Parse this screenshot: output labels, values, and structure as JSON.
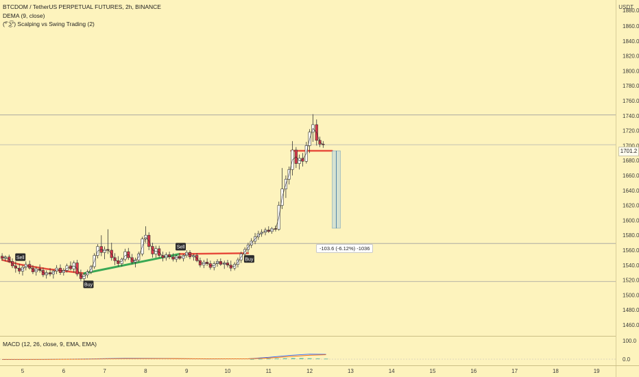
{
  "header": {
    "symbol_line": "BTCDOM / TetherUS PERPETUAL FUTURES, 2h, BINANCE",
    "indicator_1": "DEMA (9, close)",
    "indicator_2": "(͡° ͜ʖ͡°) Scalping vs Swing Trading (2)"
  },
  "currency_label": "USDT",
  "last_price_label": "1701.2",
  "measure_label": "-103.6 (-6.12%) -1036",
  "macd_label": "MACD (12, 26, close, 9, EMA, EMA)",
  "signals": [
    "Sell",
    "Buy",
    "Sell",
    "Buy"
  ],
  "colors": {
    "background": "#fdf3bd",
    "candle_up": "#ffffff",
    "candle_down": "#d9374a",
    "buy_line": "#3aa955",
    "sell_line": "#e74c3c",
    "measure_fill": "#b7d4e0"
  },
  "chart_data": [
    {
      "type": "candlestick",
      "title": "BTCDOM / TetherUS PERPETUAL FUTURES, 2h, BINANCE",
      "x_ticks": [
        "5",
        "6",
        "7",
        "8",
        "9",
        "10",
        "11",
        "12",
        "13",
        "14",
        "15",
        "16",
        "17",
        "18",
        "19"
      ],
      "y_ticks": [
        1460,
        1480,
        1500,
        1520,
        1540,
        1560,
        1580,
        1600,
        1620,
        1640,
        1660,
        1680,
        1700,
        1720,
        1740,
        1760,
        1780,
        1800,
        1820,
        1840,
        1860
      ],
      "ylim": [
        1450,
        1880
      ],
      "xlim": [
        4.45,
        19.45
      ],
      "horizontal_levels": [
        1741,
        1569,
        1518
      ],
      "last_price": 1701.2,
      "candles": [
        {
          "x": 4.5,
          "o": 1552,
          "h": 1556,
          "l": 1546,
          "c": 1549
        },
        {
          "x": 4.58,
          "o": 1549,
          "h": 1553,
          "l": 1545,
          "c": 1551
        },
        {
          "x": 4.67,
          "o": 1551,
          "h": 1554,
          "l": 1543,
          "c": 1545
        },
        {
          "x": 4.75,
          "o": 1545,
          "h": 1549,
          "l": 1536,
          "c": 1539
        },
        {
          "x": 4.83,
          "o": 1539,
          "h": 1545,
          "l": 1530,
          "c": 1536
        },
        {
          "x": 4.92,
          "o": 1536,
          "h": 1542,
          "l": 1528,
          "c": 1532
        },
        {
          "x": 5.0,
          "o": 1532,
          "h": 1540,
          "l": 1526,
          "c": 1537
        },
        {
          "x": 5.08,
          "o": 1537,
          "h": 1545,
          "l": 1533,
          "c": 1541
        },
        {
          "x": 5.17,
          "o": 1541,
          "h": 1546,
          "l": 1534,
          "c": 1536
        },
        {
          "x": 5.25,
          "o": 1536,
          "h": 1540,
          "l": 1528,
          "c": 1531
        },
        {
          "x": 5.33,
          "o": 1531,
          "h": 1538,
          "l": 1526,
          "c": 1535
        },
        {
          "x": 5.42,
          "o": 1535,
          "h": 1541,
          "l": 1530,
          "c": 1533
        },
        {
          "x": 5.5,
          "o": 1533,
          "h": 1537,
          "l": 1524,
          "c": 1527
        },
        {
          "x": 5.58,
          "o": 1527,
          "h": 1533,
          "l": 1522,
          "c": 1530
        },
        {
          "x": 5.67,
          "o": 1530,
          "h": 1536,
          "l": 1525,
          "c": 1528
        },
        {
          "x": 5.75,
          "o": 1528,
          "h": 1534,
          "l": 1522,
          "c": 1532
        },
        {
          "x": 5.83,
          "o": 1532,
          "h": 1540,
          "l": 1528,
          "c": 1536
        },
        {
          "x": 5.92,
          "o": 1536,
          "h": 1541,
          "l": 1527,
          "c": 1530
        },
        {
          "x": 6.0,
          "o": 1530,
          "h": 1536,
          "l": 1526,
          "c": 1533
        },
        {
          "x": 6.08,
          "o": 1533,
          "h": 1542,
          "l": 1530,
          "c": 1539
        },
        {
          "x": 6.17,
          "o": 1539,
          "h": 1545,
          "l": 1533,
          "c": 1535
        },
        {
          "x": 6.25,
          "o": 1535,
          "h": 1546,
          "l": 1530,
          "c": 1543
        },
        {
          "x": 6.33,
          "o": 1543,
          "h": 1547,
          "l": 1525,
          "c": 1528
        },
        {
          "x": 6.42,
          "o": 1528,
          "h": 1534,
          "l": 1519,
          "c": 1522
        },
        {
          "x": 6.5,
          "o": 1522,
          "h": 1530,
          "l": 1518,
          "c": 1527
        },
        {
          "x": 6.58,
          "o": 1527,
          "h": 1534,
          "l": 1523,
          "c": 1531
        },
        {
          "x": 6.67,
          "o": 1531,
          "h": 1540,
          "l": 1528,
          "c": 1538
        },
        {
          "x": 6.75,
          "o": 1538,
          "h": 1556,
          "l": 1535,
          "c": 1553
        },
        {
          "x": 6.83,
          "o": 1553,
          "h": 1568,
          "l": 1549,
          "c": 1565
        },
        {
          "x": 6.92,
          "o": 1565,
          "h": 1580,
          "l": 1552,
          "c": 1557
        },
        {
          "x": 7.0,
          "o": 1557,
          "h": 1565,
          "l": 1548,
          "c": 1561
        },
        {
          "x": 7.08,
          "o": 1561,
          "h": 1588,
          "l": 1555,
          "c": 1560
        },
        {
          "x": 7.17,
          "o": 1560,
          "h": 1570,
          "l": 1546,
          "c": 1550
        },
        {
          "x": 7.25,
          "o": 1550,
          "h": 1556,
          "l": 1540,
          "c": 1546
        },
        {
          "x": 7.33,
          "o": 1546,
          "h": 1552,
          "l": 1538,
          "c": 1542
        },
        {
          "x": 7.42,
          "o": 1542,
          "h": 1550,
          "l": 1538,
          "c": 1548
        },
        {
          "x": 7.5,
          "o": 1548,
          "h": 1562,
          "l": 1545,
          "c": 1558
        },
        {
          "x": 7.58,
          "o": 1558,
          "h": 1563,
          "l": 1547,
          "c": 1550
        },
        {
          "x": 7.67,
          "o": 1550,
          "h": 1555,
          "l": 1541,
          "c": 1544
        },
        {
          "x": 7.75,
          "o": 1544,
          "h": 1550,
          "l": 1537,
          "c": 1547
        },
        {
          "x": 7.83,
          "o": 1547,
          "h": 1558,
          "l": 1544,
          "c": 1555
        },
        {
          "x": 7.92,
          "o": 1555,
          "h": 1578,
          "l": 1552,
          "c": 1575
        },
        {
          "x": 8.0,
          "o": 1575,
          "h": 1592,
          "l": 1570,
          "c": 1580
        },
        {
          "x": 8.08,
          "o": 1580,
          "h": 1584,
          "l": 1560,
          "c": 1565
        },
        {
          "x": 8.17,
          "o": 1565,
          "h": 1570,
          "l": 1550,
          "c": 1555
        },
        {
          "x": 8.25,
          "o": 1555,
          "h": 1566,
          "l": 1550,
          "c": 1562
        },
        {
          "x": 8.33,
          "o": 1562,
          "h": 1566,
          "l": 1550,
          "c": 1553
        },
        {
          "x": 8.42,
          "o": 1553,
          "h": 1558,
          "l": 1545,
          "c": 1550
        },
        {
          "x": 8.5,
          "o": 1550,
          "h": 1557,
          "l": 1546,
          "c": 1554
        },
        {
          "x": 8.58,
          "o": 1554,
          "h": 1558,
          "l": 1548,
          "c": 1551
        },
        {
          "x": 8.67,
          "o": 1551,
          "h": 1556,
          "l": 1545,
          "c": 1548
        },
        {
          "x": 8.75,
          "o": 1548,
          "h": 1554,
          "l": 1544,
          "c": 1552
        },
        {
          "x": 8.83,
          "o": 1552,
          "h": 1556,
          "l": 1547,
          "c": 1549
        },
        {
          "x": 8.92,
          "o": 1549,
          "h": 1555,
          "l": 1545,
          "c": 1553
        },
        {
          "x": 9.0,
          "o": 1553,
          "h": 1560,
          "l": 1550,
          "c": 1557
        },
        {
          "x": 9.08,
          "o": 1557,
          "h": 1560,
          "l": 1548,
          "c": 1551
        },
        {
          "x": 9.17,
          "o": 1551,
          "h": 1555,
          "l": 1546,
          "c": 1553
        },
        {
          "x": 9.25,
          "o": 1553,
          "h": 1556,
          "l": 1544,
          "c": 1546
        },
        {
          "x": 9.33,
          "o": 1546,
          "h": 1550,
          "l": 1537,
          "c": 1540
        },
        {
          "x": 9.42,
          "o": 1540,
          "h": 1547,
          "l": 1536,
          "c": 1544
        },
        {
          "x": 9.5,
          "o": 1544,
          "h": 1549,
          "l": 1539,
          "c": 1542
        },
        {
          "x": 9.58,
          "o": 1542,
          "h": 1546,
          "l": 1534,
          "c": 1537
        },
        {
          "x": 9.67,
          "o": 1537,
          "h": 1545,
          "l": 1533,
          "c": 1542
        },
        {
          "x": 9.75,
          "o": 1542,
          "h": 1548,
          "l": 1538,
          "c": 1545
        },
        {
          "x": 9.83,
          "o": 1545,
          "h": 1549,
          "l": 1539,
          "c": 1541
        },
        {
          "x": 9.92,
          "o": 1541,
          "h": 1546,
          "l": 1535,
          "c": 1543
        },
        {
          "x": 10.0,
          "o": 1543,
          "h": 1547,
          "l": 1537,
          "c": 1540
        },
        {
          "x": 10.08,
          "o": 1540,
          "h": 1546,
          "l": 1532,
          "c": 1536
        },
        {
          "x": 10.17,
          "o": 1536,
          "h": 1544,
          "l": 1533,
          "c": 1541
        },
        {
          "x": 10.25,
          "o": 1541,
          "h": 1550,
          "l": 1537,
          "c": 1547
        },
        {
          "x": 10.33,
          "o": 1547,
          "h": 1558,
          "l": 1543,
          "c": 1555
        },
        {
          "x": 10.42,
          "o": 1555,
          "h": 1564,
          "l": 1551,
          "c": 1561
        },
        {
          "x": 10.5,
          "o": 1561,
          "h": 1570,
          "l": 1557,
          "c": 1567
        },
        {
          "x": 10.58,
          "o": 1567,
          "h": 1576,
          "l": 1563,
          "c": 1572
        },
        {
          "x": 10.67,
          "o": 1572,
          "h": 1583,
          "l": 1568,
          "c": 1578
        },
        {
          "x": 10.75,
          "o": 1578,
          "h": 1586,
          "l": 1574,
          "c": 1582
        },
        {
          "x": 10.83,
          "o": 1582,
          "h": 1588,
          "l": 1578,
          "c": 1584
        },
        {
          "x": 10.92,
          "o": 1584,
          "h": 1590,
          "l": 1580,
          "c": 1587
        },
        {
          "x": 11.0,
          "o": 1587,
          "h": 1592,
          "l": 1583,
          "c": 1585
        },
        {
          "x": 11.08,
          "o": 1585,
          "h": 1591,
          "l": 1582,
          "c": 1589
        },
        {
          "x": 11.17,
          "o": 1589,
          "h": 1593,
          "l": 1585,
          "c": 1588
        },
        {
          "x": 11.25,
          "o": 1588,
          "h": 1625,
          "l": 1586,
          "c": 1620
        },
        {
          "x": 11.33,
          "o": 1620,
          "h": 1670,
          "l": 1615,
          "c": 1642
        },
        {
          "x": 11.42,
          "o": 1642,
          "h": 1660,
          "l": 1630,
          "c": 1655
        },
        {
          "x": 11.5,
          "o": 1655,
          "h": 1672,
          "l": 1648,
          "c": 1668
        },
        {
          "x": 11.58,
          "o": 1668,
          "h": 1706,
          "l": 1660,
          "c": 1694
        },
        {
          "x": 11.67,
          "o": 1694,
          "h": 1698,
          "l": 1670,
          "c": 1676
        },
        {
          "x": 11.75,
          "o": 1676,
          "h": 1688,
          "l": 1668,
          "c": 1683
        },
        {
          "x": 11.83,
          "o": 1683,
          "h": 1690,
          "l": 1672,
          "c": 1679
        },
        {
          "x": 11.92,
          "o": 1679,
          "h": 1705,
          "l": 1676,
          "c": 1700
        },
        {
          "x": 12.0,
          "o": 1700,
          "h": 1722,
          "l": 1690,
          "c": 1718
        },
        {
          "x": 12.08,
          "o": 1718,
          "h": 1742,
          "l": 1705,
          "c": 1728
        },
        {
          "x": 12.17,
          "o": 1728,
          "h": 1735,
          "l": 1700,
          "c": 1707
        },
        {
          "x": 12.25,
          "o": 1707,
          "h": 1712,
          "l": 1698,
          "c": 1702
        },
        {
          "x": 12.33,
          "o": 1702,
          "h": 1706,
          "l": 1697,
          "c": 1701.2
        }
      ],
      "signals": [
        {
          "x": 4.92,
          "label": "Sell"
        },
        {
          "x": 6.58,
          "label": "Buy"
        },
        {
          "x": 8.83,
          "label": "Sell"
        },
        {
          "x": 10.5,
          "label": "Buy"
        }
      ],
      "trade_lines": [
        {
          "color": "sell",
          "points": [
            [
              4.5,
              1547
            ],
            [
              4.92,
              1541
            ],
            [
              5.58,
              1535
            ],
            [
              6.5,
              1529
            ]
          ]
        },
        {
          "color": "buy",
          "points": [
            [
              6.5,
              1529
            ],
            [
              8.83,
              1555
            ]
          ]
        },
        {
          "color": "sell",
          "points": [
            [
              8.83,
              1555
            ],
            [
              10.5,
              1556
            ]
          ]
        },
        {
          "color": "sell",
          "points": [
            [
              11.55,
              1693
            ],
            [
              12.55,
              1693
            ]
          ]
        }
      ],
      "measure": {
        "x_from": 12.55,
        "x_to": 12.75,
        "y_from": 1693,
        "y_to": 1589.4,
        "change": -103.6,
        "percent": -6.12
      }
    },
    {
      "type": "bar",
      "title": "MACD (12, 26, close, 9, EMA, EMA)",
      "y_ticks": [
        0.0,
        100.0
      ],
      "ylim": [
        -20,
        110
      ],
      "x": [
        10.6,
        10.8,
        11.0,
        11.2,
        11.4,
        11.6,
        11.8,
        12.0,
        12.2,
        12.4
      ],
      "histogram": [
        1,
        2,
        3,
        4,
        5,
        6,
        6,
        5,
        4,
        3
      ],
      "series": [
        {
          "name": "MACD",
          "x": [
            4.5,
            5.5,
            6.5,
            7.5,
            8.5,
            9.5,
            10.5,
            11.0,
            11.5,
            12.0,
            12.4
          ],
          "values": [
            -2,
            -1,
            1,
            5,
            4,
            1,
            2,
            10,
            20,
            27,
            26
          ]
        },
        {
          "name": "Signal",
          "x": [
            4.5,
            5.5,
            6.5,
            7.5,
            8.5,
            9.5,
            10.5,
            11.0,
            11.5,
            12.0,
            12.4
          ],
          "values": [
            -1,
            -1,
            0,
            3,
            3,
            2,
            2,
            6,
            14,
            21,
            24
          ]
        }
      ]
    }
  ]
}
